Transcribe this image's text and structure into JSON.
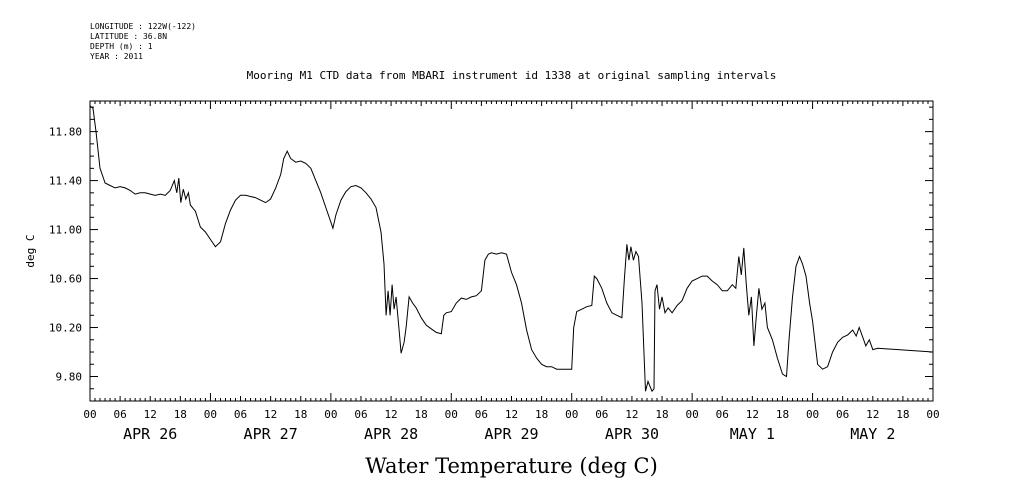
{
  "header": {
    "longitude": "LONGITUDE : 122W(-122)",
    "latitude": "LATITUDE : 36.8N",
    "depth": "DEPTH (m) : 1",
    "year": "YEAR : 2011"
  },
  "chart_data": {
    "type": "line",
    "title": "Mooring M1 CTD data from MBARI instrument id 1338 at original sampling intervals",
    "xlabel": "Water Temperature (deg C)",
    "ylabel": "deg C",
    "ylim": [
      9.6,
      12.05
    ],
    "y_ticks": [
      "11.80",
      "11.40",
      "11.00",
      "10.60",
      "10.20",
      "9.80"
    ],
    "x_hour_labels": [
      "00",
      "06",
      "12",
      "18",
      "00",
      "06",
      "12",
      "18",
      "00",
      "06",
      "12",
      "18",
      "00",
      "06",
      "12",
      "18",
      "00",
      "06",
      "12",
      "18",
      "00",
      "06",
      "12",
      "18",
      "00",
      "06",
      "12",
      "18",
      "00"
    ],
    "x_day_labels": [
      "APR 26",
      "APR 27",
      "APR 28",
      "APR 29",
      "APR 30",
      "MAY  1",
      "MAY  2"
    ],
    "x_range_hours": [
      0,
      168
    ],
    "grid": false,
    "series": [
      {
        "name": "",
        "points": [
          [
            0,
            12.01
          ],
          [
            0.6,
            11.99
          ],
          [
            1.2,
            11.8
          ],
          [
            2,
            11.5
          ],
          [
            3,
            11.38
          ],
          [
            4,
            11.36
          ],
          [
            5,
            11.34
          ],
          [
            6,
            11.35
          ],
          [
            7,
            11.34
          ],
          [
            8,
            11.32
          ],
          [
            9,
            11.29
          ],
          [
            10,
            11.3
          ],
          [
            11,
            11.3
          ],
          [
            12,
            11.29
          ],
          [
            13,
            11.28
          ],
          [
            14,
            11.29
          ],
          [
            15,
            11.28
          ],
          [
            16,
            11.32
          ],
          [
            16.8,
            11.4
          ],
          [
            17.3,
            11.3
          ],
          [
            17.7,
            11.42
          ],
          [
            18.1,
            11.22
          ],
          [
            18.6,
            11.33
          ],
          [
            19.1,
            11.25
          ],
          [
            19.6,
            11.3
          ],
          [
            20,
            11.2
          ],
          [
            21,
            11.15
          ],
          [
            22,
            11.02
          ],
          [
            23,
            10.98
          ],
          [
            24,
            10.92
          ],
          [
            25,
            10.86
          ],
          [
            26,
            10.9
          ],
          [
            27,
            11.05
          ],
          [
            28,
            11.16
          ],
          [
            29,
            11.24
          ],
          [
            30,
            11.28
          ],
          [
            31,
            11.28
          ],
          [
            32,
            11.27
          ],
          [
            33,
            11.26
          ],
          [
            34,
            11.24
          ],
          [
            35,
            11.22
          ],
          [
            36,
            11.25
          ],
          [
            37,
            11.34
          ],
          [
            38,
            11.45
          ],
          [
            38.6,
            11.58
          ],
          [
            39.3,
            11.64
          ],
          [
            40,
            11.58
          ],
          [
            41,
            11.55
          ],
          [
            42,
            11.56
          ],
          [
            43,
            11.54
          ],
          [
            44,
            11.5
          ],
          [
            45,
            11.4
          ],
          [
            46,
            11.3
          ],
          [
            47,
            11.18
          ],
          [
            48,
            11.06
          ],
          [
            48.4,
            11.01
          ],
          [
            49,
            11.12
          ],
          [
            50,
            11.24
          ],
          [
            51,
            11.31
          ],
          [
            52,
            11.35
          ],
          [
            53,
            11.36
          ],
          [
            54,
            11.34
          ],
          [
            55,
            11.3
          ],
          [
            56,
            11.25
          ],
          [
            57,
            11.18
          ],
          [
            58,
            10.98
          ],
          [
            58.6,
            10.72
          ],
          [
            59,
            10.3
          ],
          [
            59.4,
            10.5
          ],
          [
            59.8,
            10.3
          ],
          [
            60.2,
            10.55
          ],
          [
            60.6,
            10.35
          ],
          [
            61,
            10.45
          ],
          [
            61.6,
            10.18
          ],
          [
            62,
            9.99
          ],
          [
            62.6,
            10.08
          ],
          [
            63,
            10.2
          ],
          [
            63.6,
            10.45
          ],
          [
            64.3,
            10.4
          ],
          [
            65,
            10.36
          ],
          [
            66,
            10.28
          ],
          [
            67,
            10.22
          ],
          [
            68,
            10.19
          ],
          [
            69,
            10.16
          ],
          [
            70,
            10.15
          ],
          [
            70.5,
            10.3
          ],
          [
            71,
            10.32
          ],
          [
            72,
            10.33
          ],
          [
            73,
            10.4
          ],
          [
            74,
            10.44
          ],
          [
            75,
            10.43
          ],
          [
            76,
            10.45
          ],
          [
            77,
            10.46
          ],
          [
            78,
            10.5
          ],
          [
            78.7,
            10.75
          ],
          [
            79.4,
            10.8
          ],
          [
            80,
            10.81
          ],
          [
            81,
            10.8
          ],
          [
            82,
            10.81
          ],
          [
            83,
            10.8
          ],
          [
            84,
            10.65
          ],
          [
            85,
            10.55
          ],
          [
            86,
            10.4
          ],
          [
            87,
            10.18
          ],
          [
            88,
            10.02
          ],
          [
            89,
            9.95
          ],
          [
            90,
            9.9
          ],
          [
            91,
            9.88
          ],
          [
            92,
            9.88
          ],
          [
            93,
            9.86
          ],
          [
            94,
            9.86
          ],
          [
            95,
            9.86
          ],
          [
            96,
            9.86
          ],
          [
            96.4,
            10.2
          ],
          [
            97,
            10.33
          ],
          [
            98,
            10.35
          ],
          [
            99,
            10.37
          ],
          [
            100,
            10.38
          ],
          [
            100.5,
            10.62
          ],
          [
            101,
            10.6
          ],
          [
            102,
            10.52
          ],
          [
            103,
            10.4
          ],
          [
            104,
            10.32
          ],
          [
            105,
            10.3
          ],
          [
            106,
            10.28
          ],
          [
            106.5,
            10.6
          ],
          [
            107,
            10.88
          ],
          [
            107.4,
            10.75
          ],
          [
            107.8,
            10.86
          ],
          [
            108.3,
            10.75
          ],
          [
            108.8,
            10.82
          ],
          [
            109.3,
            10.78
          ],
          [
            110,
            10.4
          ],
          [
            110.7,
            9.68
          ],
          [
            111.2,
            9.76
          ],
          [
            112,
            9.68
          ],
          [
            112.4,
            9.7
          ],
          [
            112.6,
            10.5
          ],
          [
            113,
            10.55
          ],
          [
            113.5,
            10.35
          ],
          [
            114,
            10.45
          ],
          [
            114.6,
            10.32
          ],
          [
            115.2,
            10.36
          ],
          [
            116,
            10.32
          ],
          [
            117,
            10.38
          ],
          [
            118,
            10.42
          ],
          [
            119,
            10.52
          ],
          [
            120,
            10.58
          ],
          [
            121,
            10.6
          ],
          [
            122,
            10.62
          ],
          [
            123,
            10.62
          ],
          [
            124,
            10.58
          ],
          [
            125,
            10.55
          ],
          [
            126,
            10.5
          ],
          [
            127,
            10.5
          ],
          [
            128,
            10.55
          ],
          [
            128.7,
            10.52
          ],
          [
            129.3,
            10.78
          ],
          [
            129.8,
            10.63
          ],
          [
            130.3,
            10.85
          ],
          [
            130.8,
            10.55
          ],
          [
            131.3,
            10.3
          ],
          [
            131.8,
            10.45
          ],
          [
            132.3,
            10.05
          ],
          [
            132.8,
            10.3
          ],
          [
            133.3,
            10.52
          ],
          [
            133.9,
            10.35
          ],
          [
            134.5,
            10.4
          ],
          [
            135,
            10.2
          ],
          [
            136,
            10.1
          ],
          [
            137,
            9.95
          ],
          [
            138,
            9.82
          ],
          [
            138.8,
            9.8
          ],
          [
            139.3,
            10.1
          ],
          [
            140,
            10.45
          ],
          [
            140.7,
            10.7
          ],
          [
            141.4,
            10.78
          ],
          [
            142,
            10.72
          ],
          [
            142.7,
            10.62
          ],
          [
            143.4,
            10.4
          ],
          [
            144,
            10.25
          ],
          [
            145,
            9.9
          ],
          [
            146,
            9.86
          ],
          [
            147,
            9.88
          ],
          [
            148,
            10
          ],
          [
            149,
            10.08
          ],
          [
            150,
            10.12
          ],
          [
            151,
            10.14
          ],
          [
            152,
            10.18
          ],
          [
            152.7,
            10.13
          ],
          [
            153.3,
            10.2
          ],
          [
            154,
            10.12
          ],
          [
            154.6,
            10.05
          ],
          [
            155.3,
            10.1
          ],
          [
            156,
            10.02
          ],
          [
            157,
            10.03
          ],
          [
            168,
            10.0
          ]
        ]
      }
    ]
  }
}
